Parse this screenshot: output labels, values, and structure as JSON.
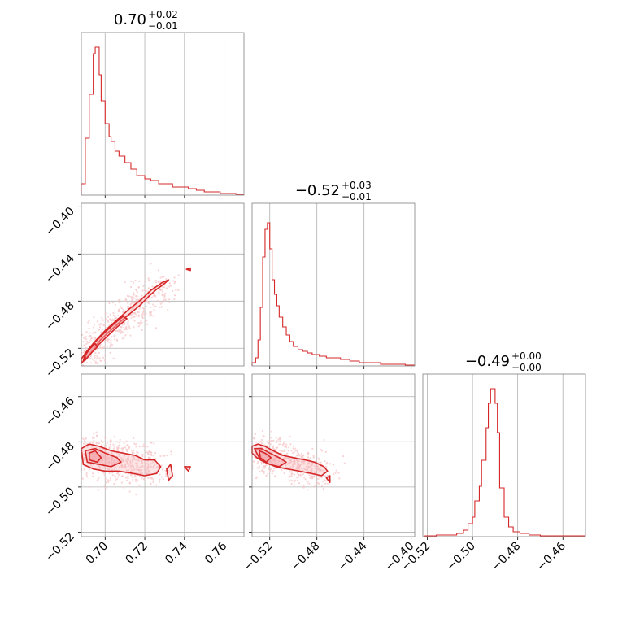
{
  "chart_data": {
    "type": "corner",
    "colors": {
      "line": "#d62728",
      "fill": "#f4a5a8",
      "scatter": "#f6c6c8",
      "grid": "#b0b0b0"
    },
    "parameters": [
      {
        "title": {
          "median": "0.70",
          "plus": "+0.02",
          "minus": "−0.01"
        },
        "range": [
          0.688,
          0.77
        ],
        "ticks": [
          0.7,
          0.72,
          0.74,
          0.76
        ],
        "tick_labels": [
          "0.70",
          "0.72",
          "0.74",
          "0.76"
        ]
      },
      {
        "title": {
          "median": "−0.52",
          "plus": "+0.03",
          "minus": "−0.01"
        },
        "range": [
          -0.535,
          -0.397
        ],
        "ticks": [
          -0.52,
          -0.48,
          -0.44,
          -0.4
        ],
        "tick_labels": [
          "−0.52",
          "−0.48",
          "−0.44",
          "−0.40"
        ]
      },
      {
        "title": {
          "median": "−0.49",
          "plus": "+0.00",
          "minus": "−0.00"
        },
        "range": [
          -0.522,
          -0.45
        ],
        "ticks": [
          -0.52,
          -0.5,
          -0.48,
          -0.46
        ],
        "tick_labels": [
          "−0.52",
          "−0.50",
          "−0.48",
          "−0.46"
        ]
      }
    ],
    "histograms": [
      {
        "parameter": 0,
        "bins": [
          [
            0.688,
            0.07
          ],
          [
            0.69,
            0.35
          ],
          [
            0.692,
            0.62
          ],
          [
            0.694,
            0.87
          ],
          [
            0.695,
            0.91
          ],
          [
            0.697,
            0.74
          ],
          [
            0.698,
            0.58
          ],
          [
            0.7,
            0.44
          ],
          [
            0.702,
            0.36
          ],
          [
            0.703,
            0.33
          ],
          [
            0.705,
            0.27
          ],
          [
            0.707,
            0.24
          ],
          [
            0.71,
            0.2
          ],
          [
            0.713,
            0.16
          ],
          [
            0.716,
            0.12
          ],
          [
            0.72,
            0.1
          ],
          [
            0.723,
            0.09
          ],
          [
            0.727,
            0.07
          ],
          [
            0.73,
            0.07
          ],
          [
            0.734,
            0.05
          ],
          [
            0.738,
            0.05
          ],
          [
            0.742,
            0.04
          ],
          [
            0.746,
            0.03
          ],
          [
            0.75,
            0.02
          ],
          [
            0.754,
            0.02
          ],
          [
            0.758,
            0.01
          ],
          [
            0.762,
            0.01
          ],
          [
            0.766,
            0.005
          ]
        ]
      },
      {
        "parameter": 1,
        "bins": [
          [
            -0.535,
            0.02
          ],
          [
            -0.532,
            0.05
          ],
          [
            -0.53,
            0.16
          ],
          [
            -0.528,
            0.36
          ],
          [
            -0.526,
            0.67
          ],
          [
            -0.524,
            0.84
          ],
          [
            -0.522,
            0.88
          ],
          [
            -0.52,
            0.72
          ],
          [
            -0.518,
            0.53
          ],
          [
            -0.516,
            0.44
          ],
          [
            -0.514,
            0.37
          ],
          [
            -0.512,
            0.3
          ],
          [
            -0.509,
            0.24
          ],
          [
            -0.506,
            0.19
          ],
          [
            -0.503,
            0.15
          ],
          [
            -0.5,
            0.12
          ],
          [
            -0.496,
            0.1
          ],
          [
            -0.492,
            0.09
          ],
          [
            -0.488,
            0.08
          ],
          [
            -0.484,
            0.07
          ],
          [
            -0.478,
            0.06
          ],
          [
            -0.472,
            0.05
          ],
          [
            -0.466,
            0.05
          ],
          [
            -0.46,
            0.04
          ],
          [
            -0.452,
            0.03
          ],
          [
            -0.444,
            0.02
          ],
          [
            -0.436,
            0.02
          ],
          [
            -0.426,
            0.01
          ],
          [
            -0.416,
            0.01
          ],
          [
            -0.405,
            0.005
          ]
        ]
      },
      {
        "parameter": 2,
        "bins": [
          [
            -0.521,
            0.005
          ],
          [
            -0.516,
            0.01
          ],
          [
            -0.511,
            0.01
          ],
          [
            -0.507,
            0.02
          ],
          [
            -0.504,
            0.04
          ],
          [
            -0.502,
            0.08
          ],
          [
            -0.5,
            0.12
          ],
          [
            -0.499,
            0.22
          ],
          [
            -0.497,
            0.31
          ],
          [
            -0.496,
            0.47
          ],
          [
            -0.494,
            0.67
          ],
          [
            -0.493,
            0.82
          ],
          [
            -0.492,
            0.91
          ],
          [
            -0.49,
            0.82
          ],
          [
            -0.489,
            0.64
          ],
          [
            -0.488,
            0.3
          ],
          [
            -0.486,
            0.12
          ],
          [
            -0.484,
            0.06
          ],
          [
            -0.482,
            0.03
          ],
          [
            -0.479,
            0.02
          ],
          [
            -0.475,
            0.01
          ],
          [
            -0.47,
            0.005
          ]
        ]
      }
    ],
    "pairs": [
      {
        "x_param": 0,
        "y_param": 1,
        "contours": [
          {
            "level": "outer",
            "points": [
              [
                0.688,
                -0.533
              ],
              [
                0.69,
                -0.529
              ],
              [
                0.693,
                -0.523
              ],
              [
                0.697,
                -0.514
              ],
              [
                0.702,
                -0.506
              ],
              [
                0.708,
                -0.497
              ],
              [
                0.713,
                -0.49
              ],
              [
                0.718,
                -0.483
              ],
              [
                0.722,
                -0.476
              ],
              [
                0.726,
                -0.47
              ],
              [
                0.73,
                -0.465
              ],
              [
                0.732,
                -0.462
              ],
              [
                0.729,
                -0.464
              ],
              [
                0.723,
                -0.471
              ],
              [
                0.718,
                -0.479
              ],
              [
                0.712,
                -0.487
              ],
              [
                0.706,
                -0.496
              ],
              [
                0.7,
                -0.505
              ],
              [
                0.695,
                -0.514
              ],
              [
                0.691,
                -0.522
              ],
              [
                0.688,
                -0.529
              ]
            ]
          },
          {
            "level": "middle",
            "points": [
              [
                0.689,
                -0.531
              ],
              [
                0.692,
                -0.526
              ],
              [
                0.696,
                -0.518
              ],
              [
                0.701,
                -0.51
              ],
              [
                0.706,
                -0.502
              ],
              [
                0.711,
                -0.495
              ],
              [
                0.709,
                -0.493
              ],
              [
                0.704,
                -0.5
              ],
              [
                0.699,
                -0.508
              ],
              [
                0.694,
                -0.516
              ],
              [
                0.69,
                -0.524
              ]
            ]
          },
          {
            "level": "inner",
            "points": [
              [
                0.69,
                -0.53
              ],
              [
                0.693,
                -0.524
              ],
              [
                0.696,
                -0.519
              ],
              [
                0.695,
                -0.516
              ],
              [
                0.692,
                -0.521
              ],
              [
                0.69,
                -0.526
              ]
            ]
          },
          {
            "level": "island",
            "points": [
              [
                0.741,
                -0.453
              ],
              [
                0.743,
                -0.452
              ],
              [
                0.743,
                -0.454
              ]
            ]
          }
        ]
      },
      {
        "x_param": 0,
        "y_param": 2,
        "contours": [
          {
            "level": "outer",
            "points": [
              [
                0.688,
                -0.483
              ],
              [
                0.692,
                -0.481
              ],
              [
                0.697,
                -0.482
              ],
              [
                0.703,
                -0.484
              ],
              [
                0.709,
                -0.485
              ],
              [
                0.715,
                -0.486
              ],
              [
                0.72,
                -0.488
              ],
              [
                0.725,
                -0.488
              ],
              [
                0.728,
                -0.491
              ],
              [
                0.726,
                -0.494
              ],
              [
                0.72,
                -0.495
              ],
              [
                0.714,
                -0.494
              ],
              [
                0.707,
                -0.493
              ],
              [
                0.7,
                -0.493
              ],
              [
                0.694,
                -0.492
              ],
              [
                0.689,
                -0.49
              ]
            ]
          },
          {
            "level": "middle",
            "points": [
              [
                0.69,
                -0.484
              ],
              [
                0.695,
                -0.483
              ],
              [
                0.7,
                -0.485
              ],
              [
                0.706,
                -0.487
              ],
              [
                0.708,
                -0.489
              ],
              [
                0.703,
                -0.491
              ],
              [
                0.697,
                -0.49
              ],
              [
                0.691,
                -0.489
              ]
            ]
          },
          {
            "level": "inner",
            "points": [
              [
                0.692,
                -0.485
              ],
              [
                0.695,
                -0.484
              ],
              [
                0.698,
                -0.487
              ],
              [
                0.696,
                -0.489
              ],
              [
                0.692,
                -0.488
              ]
            ]
          },
          {
            "level": "island",
            "points": [
              [
                0.731,
                -0.492
              ],
              [
                0.733,
                -0.49
              ],
              [
                0.734,
                -0.495
              ],
              [
                0.732,
                -0.497
              ]
            ]
          },
          {
            "level": "island",
            "points": [
              [
                0.74,
                -0.491
              ],
              [
                0.743,
                -0.491
              ],
              [
                0.742,
                -0.493
              ]
            ]
          }
        ]
      },
      {
        "x_param": 1,
        "y_param": 2,
        "contours": [
          {
            "level": "outer",
            "points": [
              [
                -0.535,
                -0.482
              ],
              [
                -0.53,
                -0.481
              ],
              [
                -0.524,
                -0.482
              ],
              [
                -0.517,
                -0.484
              ],
              [
                -0.509,
                -0.486
              ],
              [
                -0.5,
                -0.487
              ],
              [
                -0.49,
                -0.488
              ],
              [
                -0.482,
                -0.489
              ],
              [
                -0.474,
                -0.491
              ],
              [
                -0.471,
                -0.493
              ],
              [
                -0.476,
                -0.495
              ],
              [
                -0.485,
                -0.494
              ],
              [
                -0.495,
                -0.493
              ],
              [
                -0.505,
                -0.492
              ],
              [
                -0.515,
                -0.491
              ],
              [
                -0.524,
                -0.489
              ],
              [
                -0.531,
                -0.487
              ],
              [
                -0.535,
                -0.485
              ]
            ]
          },
          {
            "level": "middle",
            "points": [
              [
                -0.533,
                -0.483
              ],
              [
                -0.527,
                -0.483
              ],
              [
                -0.52,
                -0.485
              ],
              [
                -0.512,
                -0.487
              ],
              [
                -0.506,
                -0.489
              ],
              [
                -0.512,
                -0.491
              ],
              [
                -0.52,
                -0.49
              ],
              [
                -0.528,
                -0.488
              ]
            ]
          },
          {
            "level": "inner",
            "points": [
              [
                -0.529,
                -0.484
              ],
              [
                -0.524,
                -0.485
              ],
              [
                -0.519,
                -0.487
              ],
              [
                -0.523,
                -0.489
              ],
              [
                -0.528,
                -0.487
              ]
            ]
          },
          {
            "level": "island",
            "points": [
              [
                -0.472,
                -0.496
              ],
              [
                -0.469,
                -0.495
              ],
              [
                -0.469,
                -0.498
              ]
            ]
          }
        ]
      }
    ]
  }
}
